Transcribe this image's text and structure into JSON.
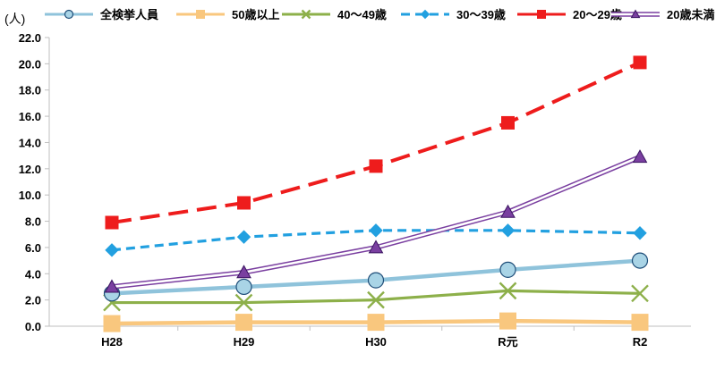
{
  "chart_data": {
    "type": "line",
    "unit_label": "(人)",
    "categories": [
      "H28",
      "H29",
      "H30",
      "R元",
      "R2"
    ],
    "ylim": [
      0,
      22
    ],
    "ytick_step": 2,
    "ytick_labels": [
      "0.0",
      "2.0",
      "4.0",
      "6.0",
      "8.0",
      "10.0",
      "12.0",
      "14.0",
      "16.0",
      "18.0",
      "20.0",
      "22.0"
    ],
    "grid": false,
    "legend_position": "top",
    "series": [
      {
        "key": "total",
        "name": "全検挙人員",
        "color": "#8fc3db",
        "marker": "circle",
        "line_style": "solid",
        "values": [
          2.5,
          3.0,
          3.5,
          4.3,
          5.0
        ]
      },
      {
        "key": "age50",
        "name": "50歳以上",
        "color": "#f9c77e",
        "marker": "square",
        "line_style": "solid",
        "values": [
          0.2,
          0.3,
          0.3,
          0.4,
          0.3
        ]
      },
      {
        "key": "age40",
        "name": "40～49歳",
        "color": "#8db04a",
        "marker": "x",
        "line_style": "solid",
        "values": [
          1.8,
          1.8,
          2.0,
          2.7,
          2.5
        ]
      },
      {
        "key": "age30",
        "name": "30～39歳",
        "color": "#22a0e0",
        "marker": "diamond",
        "line_style": "dashed",
        "values": [
          5.8,
          6.8,
          7.3,
          7.3,
          7.1
        ]
      },
      {
        "key": "age20",
        "name": "20～29歳",
        "color": "#ee1c1c",
        "marker": "square",
        "line_style": "longdash",
        "values": [
          7.9,
          9.4,
          12.2,
          15.5,
          20.1
        ]
      },
      {
        "key": "under20",
        "name": "20歳未満",
        "color": "#7a3fa0",
        "marker": "triangle",
        "line_style": "double",
        "values": [
          3.0,
          4.1,
          6.0,
          8.7,
          12.9
        ]
      }
    ]
  }
}
